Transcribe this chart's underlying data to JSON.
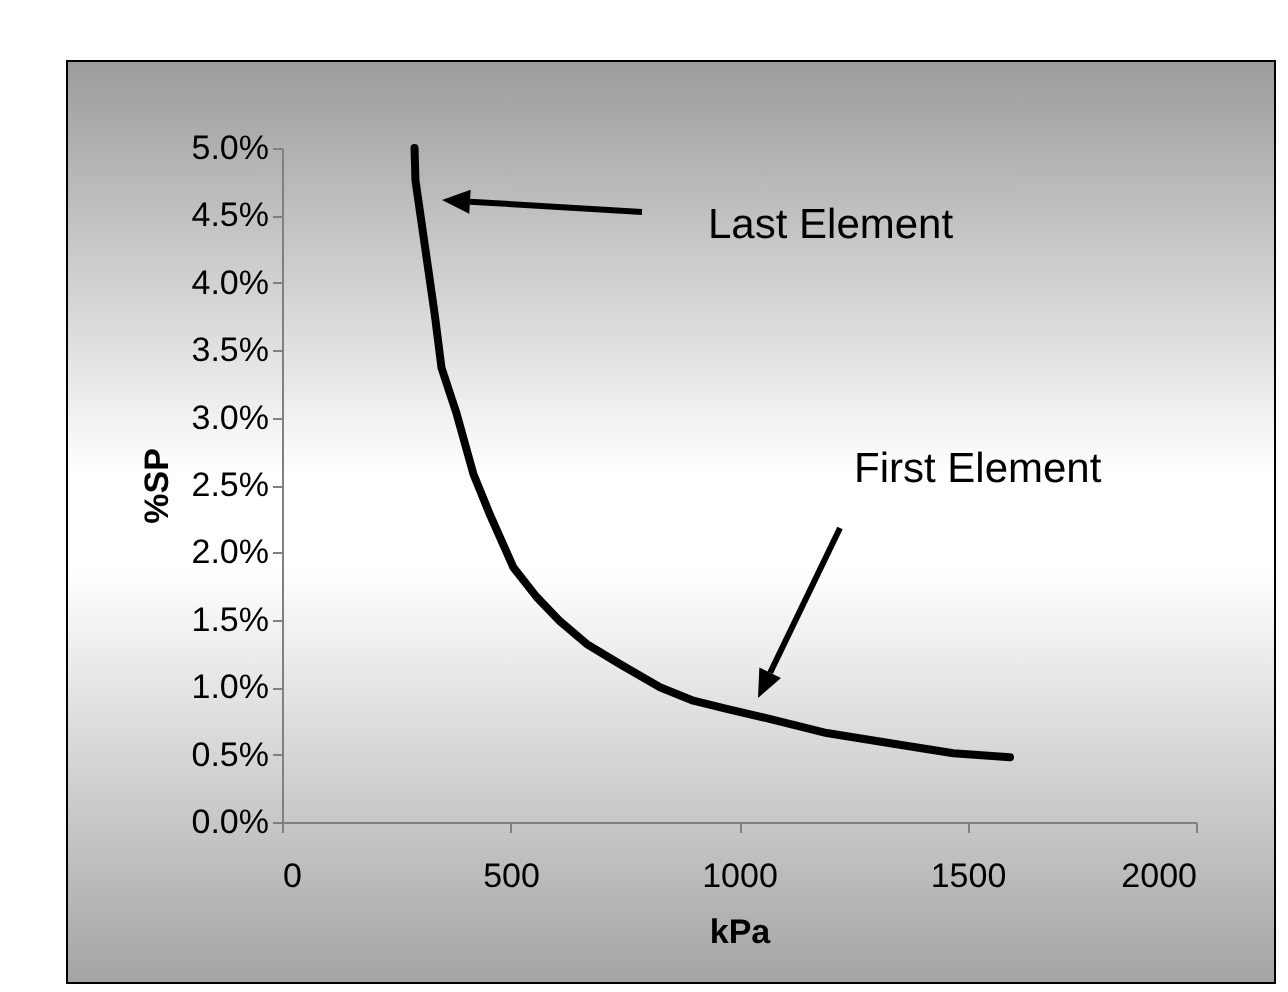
{
  "chart_data": {
    "type": "line",
    "xlabel": "kPa",
    "ylabel": "%SP",
    "x": [
      290,
      292,
      309,
      334,
      349,
      382,
      419,
      455,
      506,
      557,
      608,
      667,
      740,
      827,
      900,
      973,
      1060,
      1192,
      1338,
      1469,
      1593
    ],
    "series": [
      {
        "color": "#000000",
        "values": [
          5.0,
          4.76,
          4.36,
          3.77,
          3.37,
          3.03,
          2.58,
          2.28,
          1.89,
          1.67,
          1.49,
          1.32,
          1.17,
          1.0,
          0.9,
          0.84,
          0.77,
          0.66,
          0.58,
          0.51,
          0.48
        ]
      }
    ],
    "xlim": [
      0,
      2000
    ],
    "xticks": [
      0,
      500,
      1000,
      1500,
      2000
    ],
    "ylim": [
      0,
      5
    ],
    "yticks": [
      {
        "value": 0,
        "label": "0.0%"
      },
      {
        "value": 0.5,
        "label": "0.5%"
      },
      {
        "value": 1,
        "label": "1.0%"
      },
      {
        "value": 1.5,
        "label": "1.5%"
      },
      {
        "value": 2,
        "label": "2.0%"
      },
      {
        "value": 2.5,
        "label": "2.5%"
      },
      {
        "value": 3,
        "label": "3.0%"
      },
      {
        "value": 3.5,
        "label": "3.5%"
      },
      {
        "value": 4,
        "label": "4.0%"
      },
      {
        "value": 4.5,
        "label": "4.5%"
      },
      {
        "value": 5,
        "label": "5.0%"
      }
    ],
    "annotations": [
      "Last Element",
      "First Element"
    ]
  }
}
